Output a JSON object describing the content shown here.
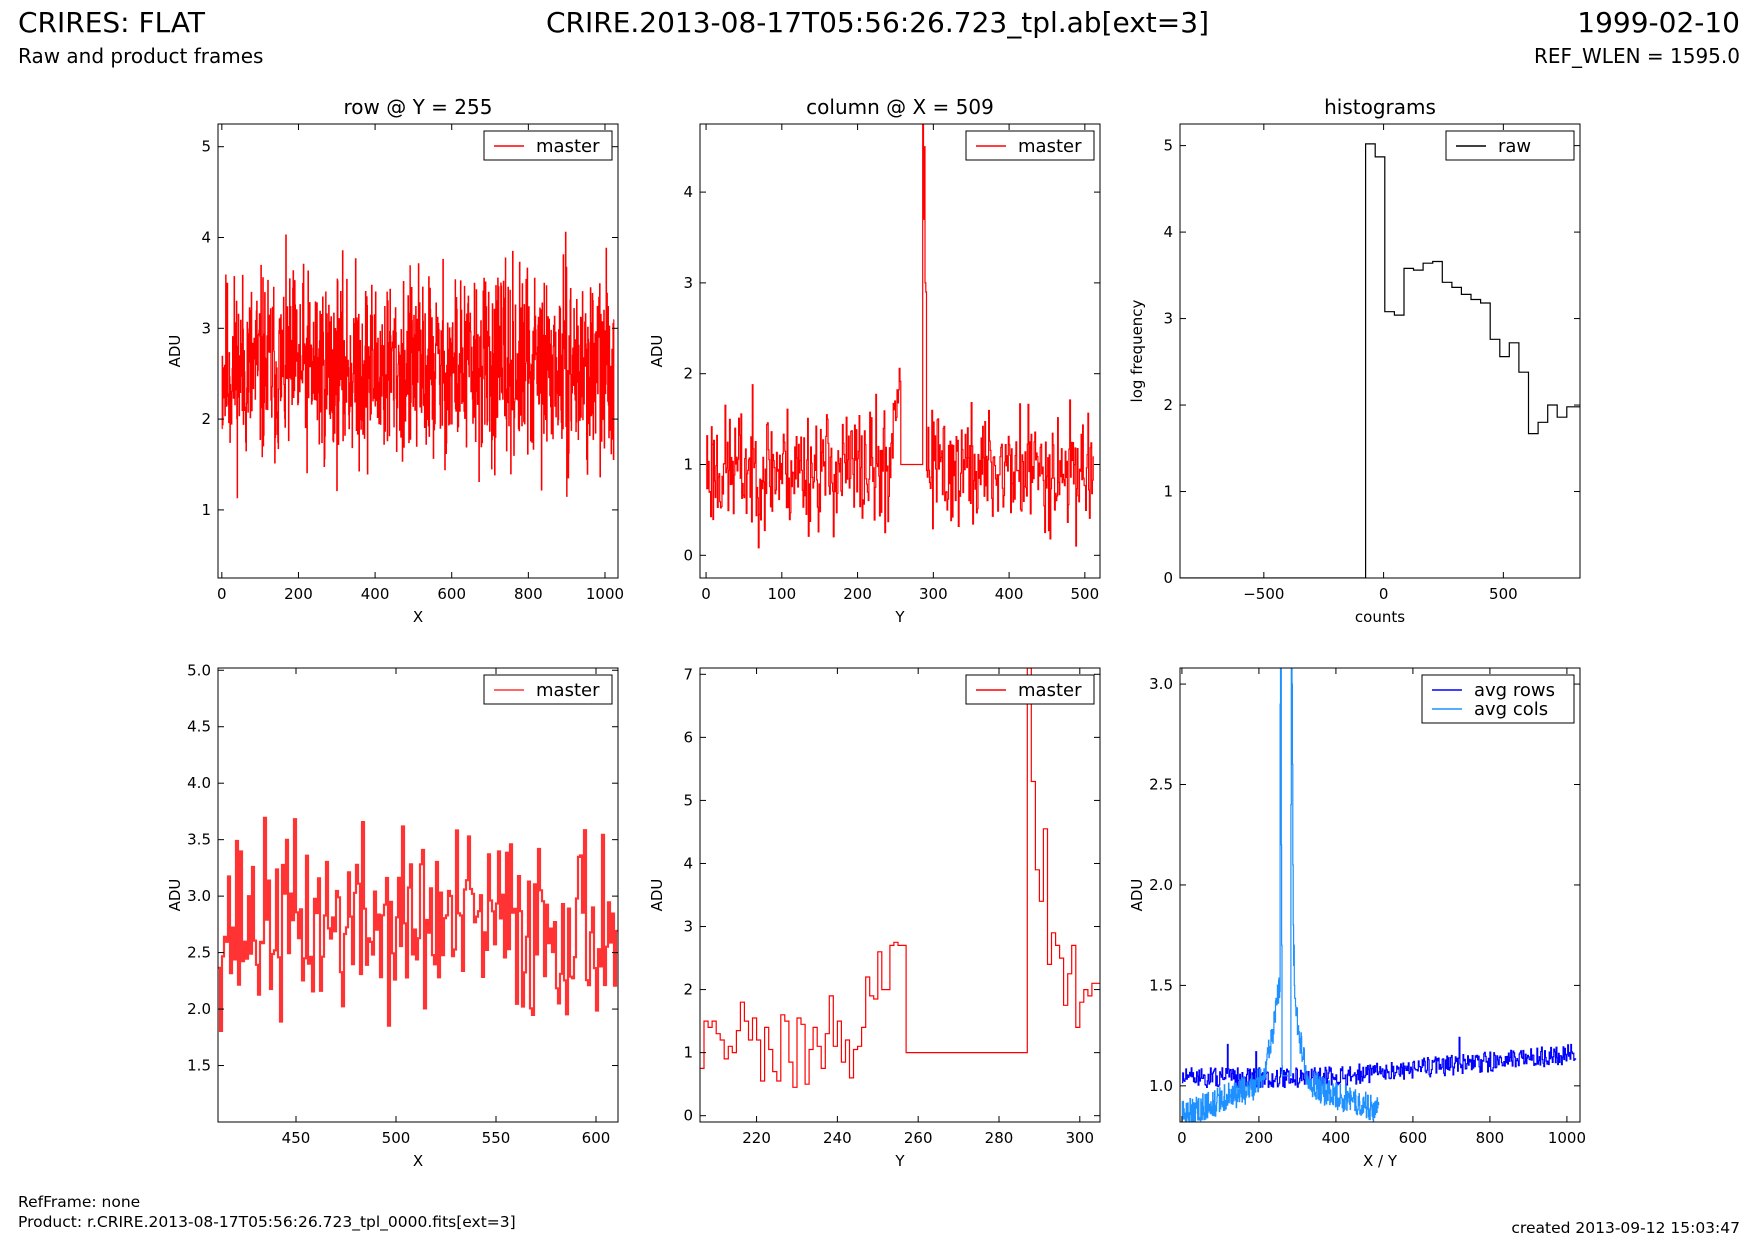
{
  "header": {
    "title_left": "CRIRES: FLAT",
    "subtitle_left": "Raw and product frames",
    "title_center": "CRIRE.2013-08-17T05:56:26.723_tpl.ab[ext=3]",
    "title_right": "1999-02-10",
    "subtitle_right": "REF_WLEN = 1595.0"
  },
  "footer": {
    "refframe": "RefFrame: none",
    "product": "Product: r.CRIRE.2013-08-17T05:56:26.723_tpl_0000.fits[ext=3]",
    "created": "created 2013-09-12 15:03:47"
  },
  "chart_data": [
    {
      "id": "row",
      "type": "line",
      "step": true,
      "title": "row @ Y = 255",
      "xlabel": "X",
      "ylabel": "ADU",
      "xlim": [
        -10,
        1034
      ],
      "ylim": [
        0.25,
        5.25
      ],
      "xticks": [
        0,
        200,
        400,
        600,
        800,
        1000
      ],
      "yticks": [
        1,
        2,
        3,
        4,
        5
      ],
      "legend": "top-right",
      "series": [
        {
          "name": "master",
          "color": "#ff0000",
          "generated": {
            "mode": "noise",
            "n": 1024,
            "x0": 0,
            "dx": 1,
            "base": 2.55,
            "spread": 1.55,
            "seed": 11
          }
        }
      ]
    },
    {
      "id": "column",
      "type": "line",
      "step": true,
      "title": "column @ X = 509",
      "xlabel": "Y",
      "ylabel": "ADU",
      "xlim": [
        -8,
        520
      ],
      "ylim": [
        -0.25,
        4.75
      ],
      "xticks": [
        0,
        100,
        200,
        300,
        400,
        500
      ],
      "yticks": [
        0,
        1,
        2,
        3,
        4
      ],
      "legend": "top-right",
      "series": [
        {
          "name": "master",
          "color": "#ff0000",
          "generated": {
            "mode": "noise",
            "n": 512,
            "x0": 0,
            "dx": 1,
            "base": 0.95,
            "spread": 1.0,
            "seed": 23,
            "segments": [
              {
                "from": 240,
                "to": 256,
                "rise": 1.2
              },
              {
                "from": 257,
                "to": 285,
                "flat": 1.0
              },
              {
                "from": 286,
                "to": 290,
                "values": [
                  4.75,
                  3.7,
                  4.5,
                  3.0,
                  2.9
                ]
              }
            ]
          }
        }
      ]
    },
    {
      "id": "hist",
      "type": "line",
      "step": true,
      "title": "histograms",
      "xlabel": "counts",
      "ylabel": "log frequency",
      "xlim": [
        -850,
        820
      ],
      "ylim": [
        0,
        5.25
      ],
      "xticks": [
        -500,
        0,
        500
      ],
      "xticklabels": [
        "−500",
        "0",
        "500"
      ],
      "yticks": [
        0,
        1,
        2,
        3,
        4,
        5
      ],
      "legend": "top-right",
      "series": [
        {
          "name": "raw",
          "color": "#000000",
          "x": [
            -850,
            -75,
            -75,
            -35,
            5,
            45,
            85,
            125,
            165,
            205,
            245,
            285,
            325,
            365,
            405,
            445,
            485,
            525,
            565,
            605,
            645,
            685,
            725,
            765,
            805
          ],
          "y": [
            0,
            0,
            5.02,
            4.87,
            3.08,
            3.04,
            3.58,
            3.56,
            3.64,
            3.66,
            3.42,
            3.36,
            3.28,
            3.22,
            3.18,
            2.76,
            2.56,
            2.72,
            2.38,
            1.67,
            1.8,
            2.0,
            1.86,
            1.98,
            1.98
          ]
        }
      ]
    },
    {
      "id": "row-zoom",
      "type": "line",
      "step": true,
      "title": "",
      "xlabel": "X",
      "ylabel": "ADU",
      "xlim": [
        411,
        611
      ],
      "ylim": [
        1.0,
        5.02
      ],
      "xticks": [
        450,
        500,
        550,
        600
      ],
      "yticks": [
        1.5,
        2.0,
        2.5,
        3.0,
        3.5,
        4.0,
        4.5,
        5.0
      ],
      "ytickfmt": 1,
      "legend": "top-right",
      "series": [
        {
          "name": "master",
          "color": "#ff3333",
          "width": 2.2,
          "generated": {
            "mode": "noise",
            "n": 200,
            "x0": 411,
            "dx": 1,
            "base": 2.75,
            "spread": 1.25,
            "seed": 37
          }
        }
      ]
    },
    {
      "id": "column-zoom",
      "type": "line",
      "step": true,
      "title": "",
      "xlabel": "Y",
      "ylabel": "ADU",
      "xlim": [
        206,
        305
      ],
      "ylim": [
        -0.1,
        7.1
      ],
      "xticks": [
        220,
        240,
        260,
        280,
        300
      ],
      "yticks": [
        0,
        1,
        2,
        3,
        4,
        5,
        6,
        7
      ],
      "legend": "top-right",
      "series": [
        {
          "name": "master",
          "color": "#ff0000",
          "x": [
            206,
            207,
            208,
            209,
            210,
            211,
            212,
            213,
            214,
            215,
            216,
            217,
            218,
            219,
            220,
            221,
            222,
            223,
            224,
            225,
            226,
            227,
            228,
            229,
            230,
            231,
            232,
            233,
            234,
            235,
            236,
            237,
            238,
            239,
            240,
            241,
            242,
            243,
            244,
            245,
            246,
            247,
            248,
            249,
            250,
            251,
            252,
            253,
            254,
            255,
            256,
            257,
            287,
            288,
            289,
            290,
            291,
            292,
            293,
            294,
            295,
            296,
            297,
            298,
            299,
            300,
            301,
            302,
            303,
            304
          ],
          "y": [
            0.75,
            1.5,
            1.4,
            1.5,
            1.3,
            1.2,
            0.9,
            1.1,
            1.0,
            1.35,
            1.8,
            1.5,
            1.2,
            1.55,
            1.2,
            0.55,
            1.4,
            1.05,
            0.7,
            0.55,
            1.6,
            1.5,
            0.85,
            0.45,
            1.55,
            1.45,
            0.5,
            1.05,
            1.4,
            1.1,
            0.75,
            1.3,
            1.9,
            1.1,
            1.5,
            0.85,
            1.2,
            0.6,
            1.05,
            1.1,
            1.4,
            2.2,
            1.9,
            1.85,
            2.6,
            2.0,
            2.0,
            2.7,
            2.75,
            2.7,
            2.7,
            1.0,
            7.1,
            5.3,
            3.9,
            3.4,
            4.55,
            2.4,
            2.9,
            2.7,
            2.5,
            1.75,
            2.25,
            2.7,
            1.4,
            1.8,
            2.0,
            1.9,
            2.1,
            2.1
          ]
        }
      ]
    },
    {
      "id": "avg",
      "type": "line",
      "step": true,
      "title": "",
      "xlabel": "X / Y",
      "ylabel": "ADU",
      "xlim": [
        -5,
        1034
      ],
      "ylim": [
        0.82,
        3.08
      ],
      "xticks": [
        0,
        200,
        400,
        600,
        800,
        1000
      ],
      "yticks": [
        1.0,
        1.5,
        2.0,
        2.5,
        3.0
      ],
      "ytickfmt": 1,
      "legend": "top-right",
      "series": [
        {
          "name": "avg rows",
          "color": "#0000ff",
          "generated": {
            "mode": "trend",
            "n": 512,
            "x0": 0,
            "dx": 2,
            "start": 1.04,
            "end": 1.16,
            "bend": 0.35,
            "spread": 0.05,
            "seed": 51
          }
        },
        {
          "name": "avg cols",
          "color": "#1e90ff",
          "generated": {
            "mode": "peak",
            "n": 512,
            "x0": 0,
            "dx": 1,
            "start": 0.85,
            "mid": 1.05,
            "end": 0.88,
            "spread": 0.07,
            "seed": 63,
            "center": 270,
            "width": 38,
            "height": 0.55,
            "segments": [
              {
                "from": 255,
                "to": 262,
                "values": [
                  2.9,
                  3.08,
                  3.08,
                  2.2,
                  1.7,
                  1.1,
                  1.05,
                  1.05
                ]
              },
              {
                "from": 263,
                "to": 282,
                "flat": 1.05
              },
              {
                "from": 283,
                "to": 292,
                "values": [
                  2.4,
                  3.08,
                  3.08,
                  3.0,
                  2.6,
                  2.1,
                  1.8,
                  1.6,
                  1.7,
                  1.5
                ]
              }
            ]
          }
        }
      ]
    }
  ]
}
